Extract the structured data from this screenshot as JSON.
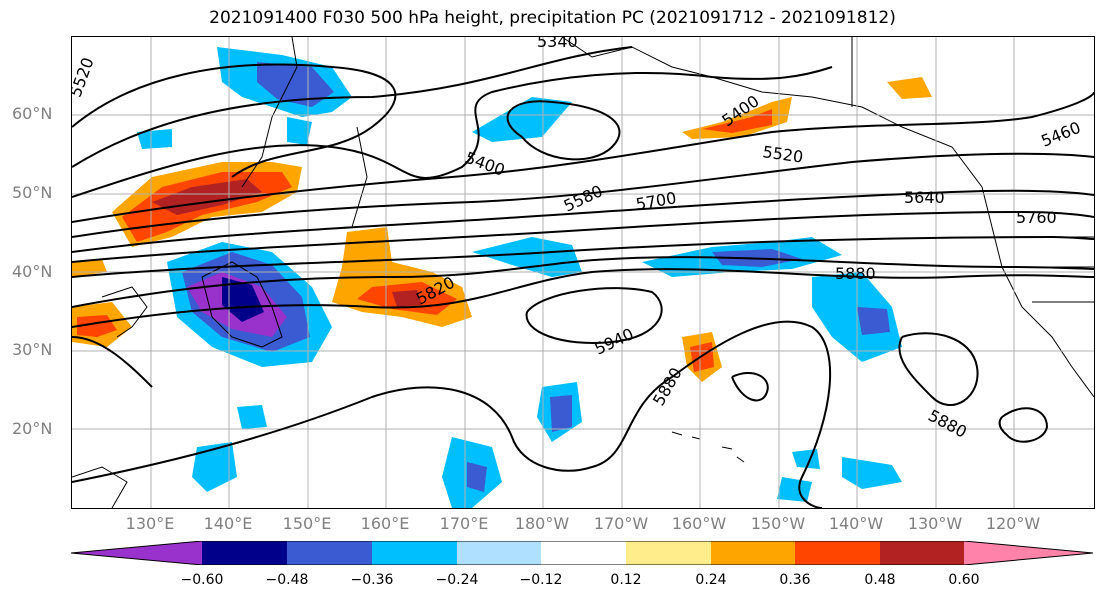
{
  "title": "2021091400 F030 500 hPa height, precipitation PC (2021091712 - 2021091812)",
  "lat_labels": [
    "60°N",
    "50°N",
    "40°N",
    "30°N",
    "20°N"
  ],
  "lon_labels": [
    "130°E",
    "140°E",
    "150°E",
    "160°E",
    "170°E",
    "180°W",
    "170°W",
    "160°W",
    "150°W",
    "140°W",
    "130°W",
    "120°W"
  ],
  "colorbar": {
    "ticks": [
      "−0.60",
      "−0.48",
      "−0.36",
      "−0.24",
      "−0.12",
      "0.12",
      "0.24",
      "0.36",
      "0.48",
      "0.60"
    ],
    "colors": [
      "#9932cc",
      "#00008b",
      "#3a5bd2",
      "#00bfff",
      "#b0e0ff",
      "#ffffff",
      "#ffec8b",
      "#ffa500",
      "#ff4500",
      "#b22222",
      "#ff82ab"
    ]
  },
  "contour_labels": [
    "5520",
    "5340",
    "5400",
    "5400",
    "5460",
    "5520",
    "5580",
    "5640",
    "5700",
    "5760",
    "5820",
    "5880",
    "5940",
    "5880",
    "5880"
  ]
}
